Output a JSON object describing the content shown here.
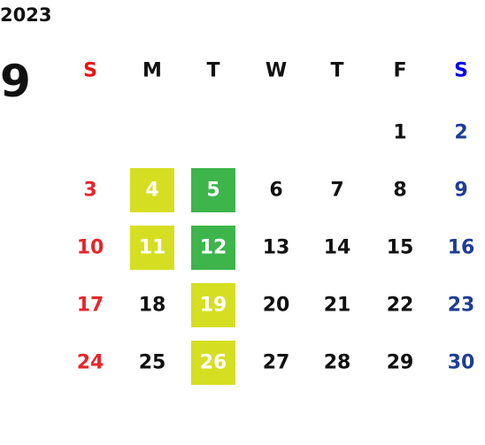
{
  "calendar": {
    "year": "2023",
    "month": "9",
    "weekdays": [
      "S",
      "M",
      "T",
      "W",
      "T",
      "F",
      "S"
    ],
    "weekday_colors": [
      "#ee1111",
      "#111111",
      "#111111",
      "#111111",
      "#111111",
      "#111111",
      "#0000ee"
    ],
    "day_colors": [
      "#e8262a",
      "#111111",
      "#111111",
      "#111111",
      "#111111",
      "#111111",
      "#1f3d94"
    ],
    "highlight_text_color": "#ffffff",
    "weeks": [
      [
        null,
        null,
        null,
        null,
        null,
        "1",
        "2"
      ],
      [
        "3",
        {
          "day": "4",
          "fill": "#d6de22"
        },
        {
          "day": "5",
          "fill": "#3db54b"
        },
        "6",
        "7",
        "8",
        "9"
      ],
      [
        "10",
        {
          "day": "11",
          "fill": "#d6de22"
        },
        {
          "day": "12",
          "fill": "#3db54b"
        },
        "13",
        "14",
        "15",
        "16"
      ],
      [
        "17",
        "18",
        {
          "day": "19",
          "fill": "#d6de22"
        },
        "20",
        "21",
        "22",
        "23"
      ],
      [
        "24",
        "25",
        {
          "day": "26",
          "fill": "#d6de22"
        },
        "27",
        "28",
        "29",
        "30"
      ]
    ]
  }
}
